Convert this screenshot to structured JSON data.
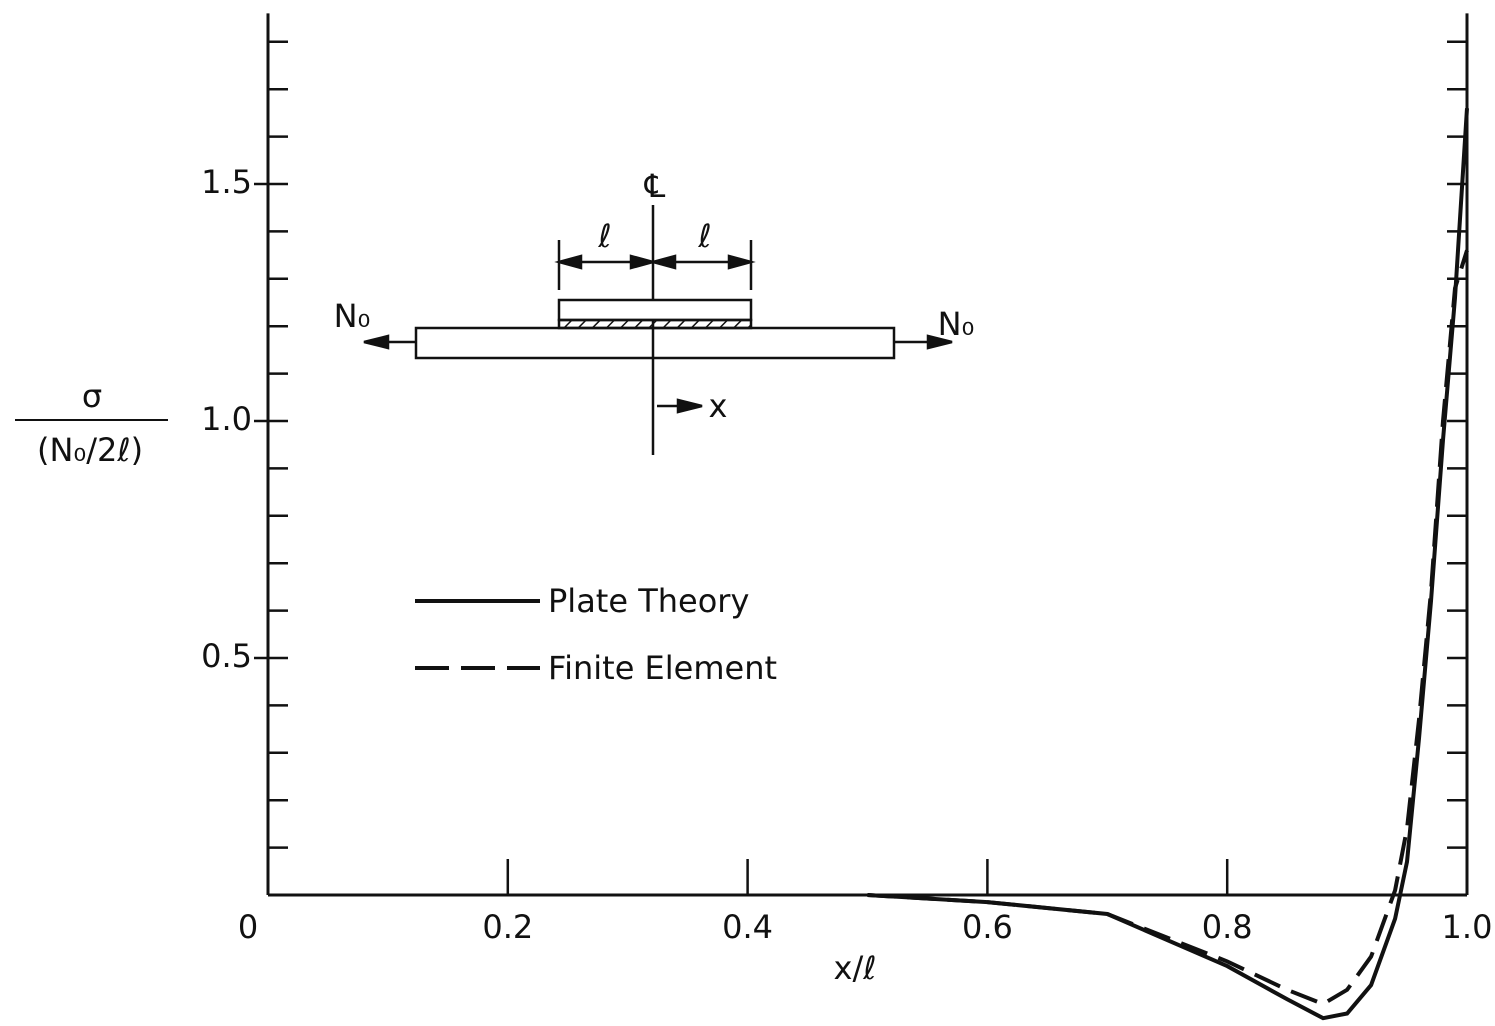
{
  "chart_data": {
    "type": "line",
    "x_label": "x/ℓ",
    "y_label_top": "σ",
    "y_label_bottom": "(N₀/2ℓ)",
    "x": [
      0.5,
      0.6,
      0.7,
      0.8,
      0.85,
      0.88,
      0.9,
      0.92,
      0.94,
      0.95,
      0.96,
      0.97,
      0.98,
      0.99,
      1.0
    ],
    "series": [
      {
        "name": "Plate Theory",
        "color": "#111111",
        "style": "solid",
        "values": [
          0,
          -0.015,
          -0.04,
          -0.15,
          -0.22,
          -0.26,
          -0.25,
          -0.19,
          -0.05,
          0.07,
          0.33,
          0.62,
          0.96,
          1.26,
          1.66
        ]
      },
      {
        "name": "Finite Element",
        "color": "#111111",
        "style": "dashed",
        "values": [
          0,
          -0.015,
          -0.04,
          -0.14,
          -0.2,
          -0.23,
          -0.2,
          -0.13,
          0.01,
          0.14,
          0.37,
          0.64,
          1.0,
          1.28,
          1.36
        ]
      }
    ],
    "xlim": [
      0,
      1
    ],
    "ylim": [
      -0.27,
      1.86
    ],
    "xticks": [
      0,
      0.2,
      0.4,
      0.6,
      0.8,
      {
        "value": 1,
        "label": "1.0"
      }
    ],
    "yticks": [
      0.5,
      {
        "value": 1,
        "label": "1.0"
      },
      1.5
    ],
    "yminorticks": [
      0.1,
      0.2,
      0.3,
      0.4,
      0.5,
      0.6,
      0.7,
      0.8,
      0.9,
      1,
      1.1,
      1.2,
      1.3,
      1.4,
      1.5,
      1.6,
      1.7,
      1.8
    ],
    "annotations": [
      "℄",
      "ℓ",
      "ℓ",
      "N₀",
      "N₀",
      "x"
    ]
  }
}
